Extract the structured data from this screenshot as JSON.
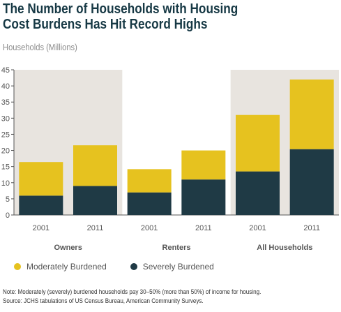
{
  "title_lines": [
    "The Number of Households with Housing",
    "Cost Burdens Has Hit Record Highs"
  ],
  "colors": {
    "moderate": "#e6c21f",
    "severe": "#1f3a45",
    "band": "#e8e4df",
    "axis": "#555555",
    "group_label": "#555555"
  },
  "chart_data": {
    "type": "bar",
    "stacked": true,
    "title": "The Number of Households with Housing Cost Burdens Has Hit Record Highs",
    "ylabel": "Households (Millions)",
    "ylim": [
      0,
      45
    ],
    "yticks": [
      0,
      5,
      10,
      15,
      20,
      25,
      30,
      35,
      40,
      45
    ],
    "groups": [
      {
        "label": "Owners",
        "shaded": true
      },
      {
        "label": "Renters",
        "shaded": false
      },
      {
        "label": "All Households",
        "shaded": true
      }
    ],
    "categories": [
      "2001",
      "2011",
      "2001",
      "2011",
      "2001",
      "2011"
    ],
    "category_group": [
      0,
      0,
      1,
      1,
      2,
      2
    ],
    "series": [
      {
        "name": "Severely Burdened",
        "values": [
          6.0,
          9.0,
          7.0,
          11.0,
          13.5,
          20.4
        ]
      },
      {
        "name": "Moderately Burdened",
        "values": [
          10.4,
          12.6,
          7.2,
          9.0,
          17.5,
          21.6
        ]
      }
    ],
    "legend": [
      "Moderately Burdened",
      "Severely Burdened"
    ],
    "legend_position": "bottom"
  },
  "note_lines": [
    "Note: Moderately (severely) burdened households pay 30–50% (more than 50%) of income for housing.",
    "Source: JCHS tabulations of US Census Bureau, American Community Surveys."
  ]
}
